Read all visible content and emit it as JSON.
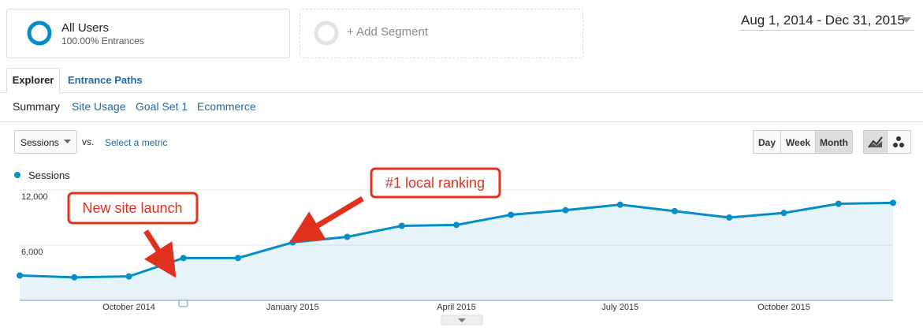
{
  "segments": [
    {
      "name": "All Users",
      "detail": "100.00% Entrances"
    },
    {
      "name": "+ Add Segment"
    }
  ],
  "date_range": "Aug 1, 2014 - Dec 31, 2015",
  "tabs": [
    "Explorer",
    "Entrance Paths"
  ],
  "subtabs": [
    "Summary",
    "Site Usage",
    "Goal Set 1",
    "Ecommerce"
  ],
  "controls": {
    "metric": "Sessions",
    "vs": "vs.",
    "compare": "Select a metric",
    "granularity": [
      "Day",
      "Week",
      "Month"
    ]
  },
  "chart_data": {
    "type": "line",
    "categories": [
      null,
      null,
      "October 2014",
      null,
      null,
      "January 2015",
      null,
      null,
      "April 2015",
      null,
      null,
      "July 2015",
      null,
      null,
      "October 2015",
      null,
      null
    ],
    "series": [
      {
        "name": "Sessions",
        "color": "#058dc7",
        "values": [
          2700,
          2500,
          2600,
          4600,
          4600,
          6300,
          6900,
          8100,
          8200,
          9300,
          9800,
          10400,
          9700,
          9000,
          9500,
          10500,
          10600
        ]
      }
    ],
    "ylim": [
      0,
      12000
    ],
    "yticks": [
      {
        "value": 6000,
        "label": "6,000"
      },
      {
        "value": 12000,
        "label": "12,000"
      }
    ],
    "grid": true,
    "annotations": [
      "New site launch",
      "#1 local ranking"
    ]
  }
}
